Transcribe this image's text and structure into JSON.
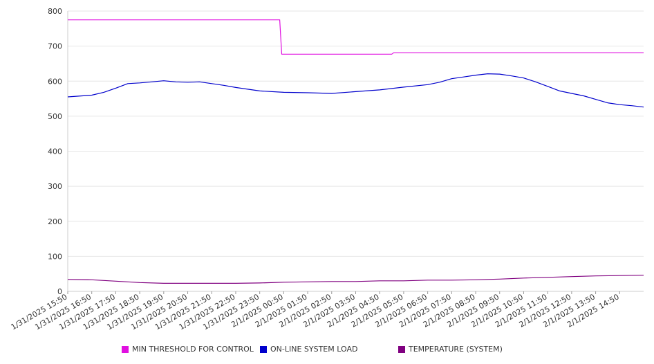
{
  "chart_data": {
    "type": "line",
    "title": "",
    "xlabel": "",
    "ylabel": "",
    "ylim": [
      0,
      800
    ],
    "y_ticks": [
      0,
      100,
      200,
      300,
      400,
      500,
      600,
      700,
      800
    ],
    "grid": true,
    "legend_position": "bottom",
    "x_tick_labels": [
      "1/31/2025 15:50",
      "1/31/2025 16:50",
      "1/31/2025 17:50",
      "1/31/2025 18:50",
      "1/31/2025 19:50",
      "1/31/2025 20:50",
      "1/31/2025 21:50",
      "1/31/2025 22:50",
      "1/31/2025 23:50",
      "2/1/2025 00:50",
      "2/1/2025 01:50",
      "2/1/2025 02:50",
      "2/1/2025 03:50",
      "2/1/2025 04:50",
      "2/1/2025 05:50",
      "2/1/2025 06:50",
      "2/1/2025 07:50",
      "2/1/2025 08:50",
      "2/1/2025 09:50",
      "2/1/2025 10:50",
      "2/1/2025 11:50",
      "2/1/2025 12:50",
      "2/1/2025 13:50",
      "2/1/2025 14:50"
    ],
    "series": [
      {
        "name": "MIN THRESHOLD FOR CONTROL",
        "color": "#e010e0",
        "points": [
          [
            "1/31/2025 15:50",
            775
          ],
          [
            "2/1/2025 00:40",
            775
          ],
          [
            "2/1/2025 00:45",
            677
          ],
          [
            "2/1/2025 05:20",
            677
          ],
          [
            "2/1/2025 05:25",
            681
          ],
          [
            "2/1/2025 15:50",
            681
          ]
        ]
      },
      {
        "name": "ON-LINE SYSTEM LOAD",
        "color": "#0000cc",
        "points": [
          [
            "1/31/2025 15:50",
            555
          ],
          [
            "1/31/2025 16:50",
            560
          ],
          [
            "1/31/2025 17:20",
            568
          ],
          [
            "1/31/2025 17:50",
            580
          ],
          [
            "1/31/2025 18:20",
            593
          ],
          [
            "1/31/2025 18:50",
            595
          ],
          [
            "1/31/2025 19:20",
            598
          ],
          [
            "1/31/2025 19:50",
            601
          ],
          [
            "1/31/2025 20:20",
            598
          ],
          [
            "1/31/2025 20:50",
            597
          ],
          [
            "1/31/2025 21:20",
            598
          ],
          [
            "1/31/2025 21:50",
            593
          ],
          [
            "1/31/2025 22:20",
            588
          ],
          [
            "1/31/2025 22:50",
            582
          ],
          [
            "1/31/2025 23:20",
            577
          ],
          [
            "1/31/2025 23:50",
            572
          ],
          [
            "2/1/2025 00:50",
            568
          ],
          [
            "2/1/2025 01:50",
            567
          ],
          [
            "2/1/2025 02:50",
            565
          ],
          [
            "2/1/2025 03:50",
            570
          ],
          [
            "2/1/2025 04:50",
            575
          ],
          [
            "2/1/2025 05:50",
            583
          ],
          [
            "2/1/2025 06:50",
            590
          ],
          [
            "2/1/2025 07:20",
            597
          ],
          [
            "2/1/2025 07:50",
            607
          ],
          [
            "2/1/2025 08:20",
            612
          ],
          [
            "2/1/2025 08:50",
            617
          ],
          [
            "2/1/2025 09:20",
            621
          ],
          [
            "2/1/2025 09:50",
            620
          ],
          [
            "2/1/2025 10:20",
            615
          ],
          [
            "2/1/2025 10:50",
            609
          ],
          [
            "2/1/2025 11:20",
            598
          ],
          [
            "2/1/2025 11:50",
            585
          ],
          [
            "2/1/2025 12:20",
            572
          ],
          [
            "2/1/2025 12:50",
            565
          ],
          [
            "2/1/2025 13:20",
            558
          ],
          [
            "2/1/2025 13:50",
            548
          ],
          [
            "2/1/2025 14:20",
            538
          ],
          [
            "2/1/2025 14:50",
            533
          ],
          [
            "2/1/2025 15:20",
            530
          ],
          [
            "2/1/2025 15:50",
            526
          ]
        ]
      },
      {
        "name": "TEMPERATURE (SYSTEM)",
        "color": "#800080",
        "points": [
          [
            "1/31/2025 15:50",
            34
          ],
          [
            "1/31/2025 16:50",
            33
          ],
          [
            "1/31/2025 17:50",
            29
          ],
          [
            "1/31/2025 18:50",
            25
          ],
          [
            "1/31/2025 19:50",
            23
          ],
          [
            "1/31/2025 20:50",
            23
          ],
          [
            "1/31/2025 21:50",
            23
          ],
          [
            "1/31/2025 22:50",
            23
          ],
          [
            "1/31/2025 23:50",
            24
          ],
          [
            "2/1/2025 00:50",
            26
          ],
          [
            "2/1/2025 01:50",
            27
          ],
          [
            "2/1/2025 02:50",
            28
          ],
          [
            "2/1/2025 03:50",
            28
          ],
          [
            "2/1/2025 04:50",
            30
          ],
          [
            "2/1/2025 05:50",
            30
          ],
          [
            "2/1/2025 06:50",
            32
          ],
          [
            "2/1/2025 07:50",
            32
          ],
          [
            "2/1/2025 08:50",
            33
          ],
          [
            "2/1/2025 09:50",
            35
          ],
          [
            "2/1/2025 10:50",
            38
          ],
          [
            "2/1/2025 11:50",
            40
          ],
          [
            "2/1/2025 12:50",
            42
          ],
          [
            "2/1/2025 13:50",
            44
          ],
          [
            "2/1/2025 14:50",
            45
          ],
          [
            "2/1/2025 15:50",
            46
          ]
        ]
      }
    ]
  }
}
